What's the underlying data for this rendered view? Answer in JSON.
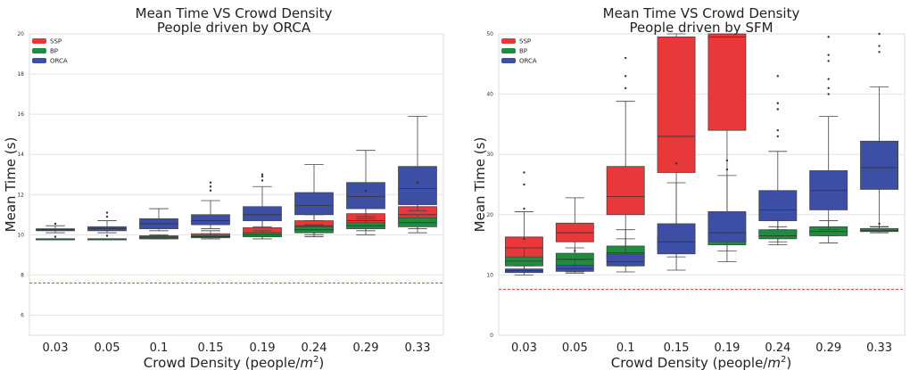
{
  "chart_data": [
    {
      "type": "box",
      "title": "Mean Time VS Crowd Density",
      "subtitle": "People driven by ORCA",
      "xlabel": "Crowd Density (people/",
      "xlabel_unit_base": "m",
      "xlabel_unit_exp": "2",
      "xlabel_close": ")",
      "ylabel": "Mean Time (s)",
      "ylim": [
        5,
        20
      ],
      "yticks": [
        "6",
        "8",
        "10",
        "12",
        "14",
        "16",
        "18",
        "20"
      ],
      "grid": true,
      "legend_position": "top-left",
      "reference_line": {
        "y": 7.6,
        "color": "#e8383a",
        "style": "dashed"
      },
      "categories": [
        "0.03",
        "0.05",
        "0.1",
        "0.15",
        "0.19",
        "0.24",
        "0.29",
        "0.33"
      ],
      "series": [
        {
          "name": "SSP",
          "color": "#e8383a",
          "boxes": [
            {
              "whislo": 9.8,
              "q1": 9.8,
              "med": 9.8,
              "q3": 9.8,
              "whishi": 9.8,
              "fliers": []
            },
            {
              "whislo": 9.8,
              "q1": 9.8,
              "med": 9.8,
              "q3": 9.8,
              "whishi": 9.8,
              "fliers": []
            },
            {
              "whislo": 9.8,
              "q1": 9.8,
              "med": 9.85,
              "q3": 9.95,
              "whishi": 10.0,
              "fliers": []
            },
            {
              "whislo": 9.8,
              "q1": 9.9,
              "med": 9.95,
              "q3": 10.05,
              "whishi": 10.2,
              "fliers": []
            },
            {
              "whislo": 9.8,
              "q1": 10.0,
              "med": 10.1,
              "q3": 10.35,
              "whishi": 10.8,
              "fliers": []
            },
            {
              "whislo": 9.9,
              "q1": 10.3,
              "med": 10.45,
              "q3": 10.7,
              "whishi": 11.0,
              "fliers": []
            },
            {
              "whislo": 10.0,
              "q1": 10.5,
              "med": 10.7,
              "q3": 11.05,
              "whishi": 11.4,
              "fliers": []
            },
            {
              "whislo": 10.1,
              "q1": 10.8,
              "med": 11.0,
              "q3": 11.4,
              "whishi": 11.9,
              "fliers": []
            }
          ]
        },
        {
          "name": "BP",
          "color": "#1e8e3e",
          "boxes": [
            {
              "whislo": 9.8,
              "q1": 9.8,
              "med": 9.8,
              "q3": 9.8,
              "whishi": 9.8,
              "fliers": []
            },
            {
              "whislo": 9.8,
              "q1": 9.8,
              "med": 9.8,
              "q3": 9.8,
              "whishi": 9.8,
              "fliers": []
            },
            {
              "whislo": 9.8,
              "q1": 9.8,
              "med": 9.85,
              "q3": 9.9,
              "whishi": 9.95,
              "fliers": []
            },
            {
              "whislo": 9.8,
              "q1": 9.85,
              "med": 9.9,
              "q3": 9.95,
              "whishi": 10.05,
              "fliers": []
            },
            {
              "whislo": 9.8,
              "q1": 9.9,
              "med": 10.0,
              "q3": 10.1,
              "whishi": 10.2,
              "fliers": []
            },
            {
              "whislo": 10.0,
              "q1": 10.1,
              "med": 10.25,
              "q3": 10.4,
              "whishi": 10.5,
              "fliers": []
            },
            {
              "whislo": 10.2,
              "q1": 10.3,
              "med": 10.45,
              "q3": 10.6,
              "whishi": 10.8,
              "fliers": []
            },
            {
              "whislo": 10.3,
              "q1": 10.4,
              "med": 10.6,
              "q3": 10.85,
              "whishi": 11.0,
              "fliers": []
            }
          ]
        },
        {
          "name": "ORCA",
          "color": "#3d4ea5",
          "boxes": [
            {
              "whislo": 10.1,
              "q1": 10.2,
              "med": 10.25,
              "q3": 10.3,
              "whishi": 10.45,
              "fliers": [
                10.55,
                9.9
              ]
            },
            {
              "whislo": 10.1,
              "q1": 10.2,
              "med": 10.3,
              "q3": 10.4,
              "whishi": 10.7,
              "fliers": [
                10.9,
                11.1,
                9.95
              ]
            },
            {
              "whislo": 10.2,
              "q1": 10.3,
              "med": 10.55,
              "q3": 10.8,
              "whishi": 11.3,
              "fliers": []
            },
            {
              "whislo": 10.3,
              "q1": 10.5,
              "med": 10.7,
              "q3": 11.0,
              "whishi": 11.7,
              "fliers": [
                12.2,
                12.4,
                12.6
              ]
            },
            {
              "whislo": 10.4,
              "q1": 10.7,
              "med": 11.0,
              "q3": 11.4,
              "whishi": 12.4,
              "fliers": [
                12.7,
                12.9,
                13.0
              ]
            },
            {
              "whislo": 10.7,
              "q1": 11.0,
              "med": 11.45,
              "q3": 12.1,
              "whishi": 13.5,
              "fliers": []
            },
            {
              "whislo": 10.9,
              "q1": 11.3,
              "med": 11.9,
              "q3": 12.6,
              "whishi": 14.2,
              "fliers": [
                12.2
              ]
            },
            {
              "whislo": 11.2,
              "q1": 11.5,
              "med": 12.3,
              "q3": 13.4,
              "whishi": 15.9,
              "fliers": [
                12.6
              ]
            }
          ]
        }
      ]
    },
    {
      "type": "box",
      "title": "Mean Time VS Crowd Density",
      "subtitle": "People driven by SFM",
      "xlabel": "Crowd Density (people/",
      "xlabel_unit_base": "m",
      "xlabel_unit_exp": "2",
      "xlabel_close": ")",
      "ylabel": "Mean Time (s)",
      "ylim": [
        0,
        50
      ],
      "yticks": [
        "0",
        "10",
        "20",
        "30",
        "40",
        "50"
      ],
      "grid": true,
      "legend_position": "top-left",
      "reference_line": {
        "y": 7.6,
        "color": "#e8383a",
        "style": "dashed"
      },
      "categories": [
        "0.03",
        "0.05",
        "0.1",
        "0.15",
        "0.19",
        "0.24",
        "0.29",
        "0.33"
      ],
      "series": [
        {
          "name": "SSP",
          "color": "#e8383a",
          "boxes": [
            {
              "whislo": 10.5,
              "q1": 12.8,
              "med": 14.5,
              "q3": 16.3,
              "whishi": 20.5,
              "fliers": [
                25.0,
                27.0,
                21.0,
                16.0
              ]
            },
            {
              "whislo": 11.5,
              "q1": 15.5,
              "med": 17.0,
              "q3": 18.6,
              "whishi": 22.8,
              "fliers": [
                14.0
              ]
            },
            {
              "whislo": 14.5,
              "q1": 20.0,
              "med": 23.0,
              "q3": 28.0,
              "whishi": 38.8,
              "fliers": [
                41.0,
                43.0,
                46.0
              ]
            },
            {
              "whislo": 14.5,
              "q1": 27.0,
              "med": 33.0,
              "q3": 49.5,
              "whishi": 50.0,
              "fliers": []
            },
            {
              "whislo": 15.5,
              "q1": 34.0,
              "med": 49.5,
              "q3": 50.0,
              "whishi": 50.0,
              "fliers": []
            },
            {
              "whislo": 15.5,
              "q1": 16.8,
              "med": 17.0,
              "q3": 17.4,
              "whishi": 18.0,
              "fliers": []
            },
            {
              "whislo": 16.5,
              "q1": 16.9,
              "med": 17.1,
              "q3": 17.4,
              "whishi": 17.8,
              "fliers": []
            },
            {
              "whislo": 17.0,
              "q1": 17.3,
              "med": 17.5,
              "q3": 17.7,
              "whishi": 18.0,
              "fliers": []
            }
          ]
        },
        {
          "name": "BP",
          "color": "#1e8e3e",
          "boxes": [
            {
              "whislo": 10.8,
              "q1": 11.5,
              "med": 12.3,
              "q3": 13.0,
              "whishi": 14.5,
              "fliers": []
            },
            {
              "whislo": 10.5,
              "q1": 11.5,
              "med": 12.6,
              "q3": 13.6,
              "whishi": 14.5,
              "fliers": []
            },
            {
              "whislo": 11.5,
              "q1": 12.5,
              "med": 13.7,
              "q3": 14.8,
              "whishi": 17.5,
              "fliers": []
            },
            {
              "whislo": 13.0,
              "q1": 14.2,
              "med": 15.2,
              "q3": 16.4,
              "whishi": 17.5,
              "fliers": []
            },
            {
              "whislo": 14.0,
              "q1": 15.0,
              "med": 16.2,
              "q3": 16.8,
              "whishi": 18.5,
              "fliers": []
            },
            {
              "whislo": 15.0,
              "q1": 16.0,
              "med": 16.5,
              "q3": 17.5,
              "whishi": 19.0,
              "fliers": []
            },
            {
              "whislo": 15.3,
              "q1": 16.5,
              "med": 17.2,
              "q3": 18.0,
              "whishi": 19.0,
              "fliers": []
            },
            {
              "whislo": 17.0,
              "q1": 17.2,
              "med": 17.4,
              "q3": 17.7,
              "whishi": 18.0,
              "fliers": [
                18.5
              ]
            }
          ]
        },
        {
          "name": "ORCA",
          "color": "#3d4ea5",
          "boxes": [
            {
              "whislo": 10.0,
              "q1": 10.4,
              "med": 10.7,
              "q3": 11.0,
              "whishi": 11.5,
              "fliers": []
            },
            {
              "whislo": 10.3,
              "q1": 10.6,
              "med": 11.0,
              "q3": 11.6,
              "whishi": 12.5,
              "fliers": []
            },
            {
              "whislo": 10.5,
              "q1": 11.5,
              "med": 12.2,
              "q3": 13.5,
              "whishi": 16.0,
              "fliers": []
            },
            {
              "whislo": 10.8,
              "q1": 13.5,
              "med": 15.5,
              "q3": 18.5,
              "whishi": 25.3,
              "fliers": [
                28.5
              ]
            },
            {
              "whislo": 12.2,
              "q1": 15.5,
              "med": 17.0,
              "q3": 20.5,
              "whishi": 26.5,
              "fliers": [
                27.5,
                29.0
              ]
            },
            {
              "whislo": 17.5,
              "q1": 19.0,
              "med": 20.8,
              "q3": 24.0,
              "whishi": 30.5,
              "fliers": [
                33.0,
                34.0,
                37.5,
                38.5,
                43.0
              ]
            },
            {
              "whislo": 17.5,
              "q1": 20.8,
              "med": 24.0,
              "q3": 27.3,
              "whishi": 36.3,
              "fliers": [
                40.0,
                41.0,
                42.5,
                45.5,
                46.5,
                49.5
              ]
            },
            {
              "whislo": 18.0,
              "q1": 24.2,
              "med": 27.8,
              "q3": 32.2,
              "whishi": 41.2,
              "fliers": [
                47.0,
                48.0,
                50.0
              ]
            }
          ]
        }
      ]
    }
  ]
}
